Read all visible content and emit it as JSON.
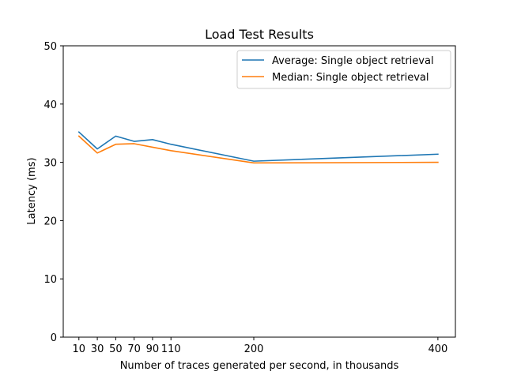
{
  "chart_data": {
    "type": "line",
    "title": "Load Test Results",
    "xlabel": "Number of traces generated per second, in thousands",
    "ylabel": "Latency (ms)",
    "x": [
      10,
      30,
      50,
      70,
      90,
      110,
      200,
      400
    ],
    "xticks": [
      10,
      30,
      50,
      70,
      90,
      110,
      200,
      400
    ],
    "yticks": [
      0,
      10,
      20,
      30,
      40,
      50
    ],
    "xlim": [
      -7,
      419
    ],
    "ylim": [
      0,
      50
    ],
    "grid": false,
    "legend_position": "top-right",
    "series": [
      {
        "name": "Average: Single object retrieval",
        "color": "#1f77b4",
        "values": [
          35.2,
          32.3,
          34.5,
          33.6,
          33.9,
          33.1,
          30.2,
          31.4
        ]
      },
      {
        "name": "Median: Single object retrieval",
        "color": "#ff7f0e",
        "values": [
          34.5,
          31.6,
          33.1,
          33.2,
          32.6,
          32.0,
          29.9,
          30.0
        ]
      }
    ]
  }
}
